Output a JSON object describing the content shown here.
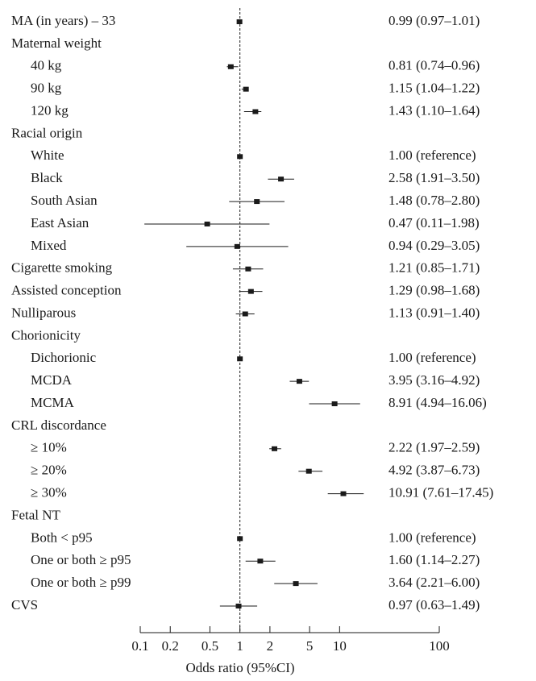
{
  "chart_data": {
    "type": "forest",
    "x_label": "Odds ratio (95%CI)",
    "xlim": [
      0.1,
      100
    ],
    "xticks": [
      0.1,
      0.2,
      0.5,
      1,
      2,
      5,
      10,
      100
    ],
    "log_x": true,
    "reference_line": 1,
    "color": "#1a1a1a",
    "rows": [
      {
        "label": "MA (in years) – 33",
        "value": 0.99,
        "lower": 0.97,
        "upper": 1.01,
        "value_label": "0.99 (0.97–1.01)"
      },
      {
        "label": "Maternal weight",
        "items": [
          {
            "label": "40 kg",
            "value": 0.81,
            "lower": 0.74,
            "upper": 0.96,
            "value_label": "0.81 (0.74–0.96)"
          },
          {
            "label": "90 kg",
            "value": 1.15,
            "lower": 1.04,
            "upper": 1.22,
            "value_label": "1.15 (1.04–1.22)"
          },
          {
            "label": "120 kg",
            "value": 1.43,
            "lower": 1.1,
            "upper": 1.64,
            "value_label": "1.43 (1.10–1.64)"
          }
        ]
      },
      {
        "label": "Racial origin",
        "items": [
          {
            "label": "White",
            "value": 1,
            "value_label": "1.00 (reference)"
          },
          {
            "label": "Black",
            "value": 2.58,
            "lower": 1.91,
            "upper": 3.5,
            "value_label": "2.58 (1.91–3.50)"
          },
          {
            "label": "South Asian",
            "value": 1.48,
            "lower": 0.78,
            "upper": 2.8,
            "value_label": "1.48 (0.78–2.80)"
          },
          {
            "label": "East Asian",
            "value": 0.47,
            "lower": 0.11,
            "upper": 1.98,
            "value_label": "0.47 (0.11–1.98)"
          },
          {
            "label": "Mixed",
            "value": 0.94,
            "lower": 0.29,
            "upper": 3.05,
            "value_label": "0.94 (0.29–3.05)"
          }
        ]
      },
      {
        "label": "Cigarette smoking",
        "value": 1.21,
        "lower": 0.85,
        "upper": 1.71,
        "value_label": "1.21 (0.85–1.71)"
      },
      {
        "label": "Assisted conception",
        "value": 1.29,
        "lower": 0.98,
        "upper": 1.68,
        "value_label": "1.29 (0.98–1.68)"
      },
      {
        "label": "Nulliparous",
        "value": 1.13,
        "lower": 0.91,
        "upper": 1.4,
        "value_label": "1.13 (0.91–1.40)"
      },
      {
        "label": "Chorionicity",
        "items": [
          {
            "label": "Dichorionic",
            "value": 1,
            "value_label": "1.00 (reference)"
          },
          {
            "label": "MCDA",
            "value": 3.95,
            "lower": 3.16,
            "upper": 4.92,
            "value_label": "3.95 (3.16–4.92)"
          },
          {
            "label": "MCMA",
            "value": 8.91,
            "lower": 4.94,
            "upper": 16.06,
            "value_label": "8.91 (4.94–16.06)"
          }
        ]
      },
      {
        "label": "CRL discordance",
        "items": [
          {
            "label": "≥ 10%",
            "value": 2.22,
            "lower": 1.97,
            "upper": 2.59,
            "value_label": "2.22 (1.97–2.59)"
          },
          {
            "label": "≥ 20%",
            "value": 4.92,
            "lower": 3.87,
            "upper": 6.73,
            "value_label": "4.92 (3.87–6.73)"
          },
          {
            "label": "≥ 30%",
            "value": 10.91,
            "lower": 7.61,
            "upper": 17.45,
            "value_label": "10.91 (7.61–17.45)"
          }
        ]
      },
      {
        "label": "Fetal NT",
        "items": [
          {
            "label": "Both < p95",
            "value": 1,
            "value_label": "1.00 (reference)"
          },
          {
            "label": "One or both ≥ p95",
            "value": 1.6,
            "lower": 1.14,
            "upper": 2.27,
            "value_label": "1.60 (1.14–2.27)"
          },
          {
            "label": "One or both ≥ p99",
            "value": 3.64,
            "lower": 2.21,
            "upper": 6.0,
            "value_label": "3.64 (2.21–6.00)"
          }
        ]
      },
      {
        "label": "CVS",
        "value": 0.97,
        "lower": 0.63,
        "upper": 1.49,
        "value_label": "0.97 (0.63–1.49)"
      }
    ]
  }
}
